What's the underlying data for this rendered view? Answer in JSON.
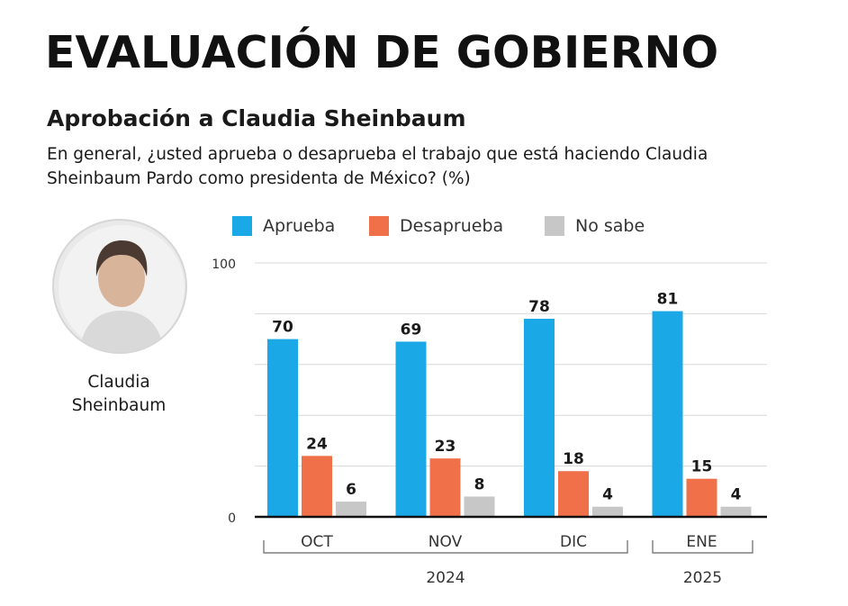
{
  "header": {
    "title": "EVALUACIÓN DE GOBIERNO",
    "subtitle": "Aprobación a Claudia Sheinbaum",
    "question": "En general, ¿usted aprueba o desaprueba el trabajo que está haciendo Claudia Sheinbaum Pardo como presidenta de México? (%)"
  },
  "person": {
    "name_line1": "Claudia",
    "name_line2": "Sheinbaum"
  },
  "colors": {
    "aprueba": "#1ba8e6",
    "desaprueba": "#ef7049",
    "no_sabe": "#c7c7c7"
  },
  "chart_data": {
    "type": "bar",
    "title": "Aprobación a Claudia Sheinbaum",
    "xlabel": "",
    "ylabel": "",
    "ylim": [
      0,
      100
    ],
    "y_tick_labels": [
      "0",
      "100"
    ],
    "grid": true,
    "legend_position": "top",
    "categories": [
      "OCT",
      "NOV",
      "DIC",
      "ENE"
    ],
    "year_groups": [
      {
        "label": "2024",
        "categories": [
          "OCT",
          "NOV",
          "DIC"
        ]
      },
      {
        "label": "2025",
        "categories": [
          "ENE"
        ]
      }
    ],
    "series": [
      {
        "name": "Aprueba",
        "values": [
          70,
          69,
          78,
          81
        ]
      },
      {
        "name": "Desaprueba",
        "values": [
          24,
          23,
          18,
          15
        ]
      },
      {
        "name": "No sabe",
        "values": [
          6,
          8,
          4,
          4
        ]
      }
    ]
  }
}
